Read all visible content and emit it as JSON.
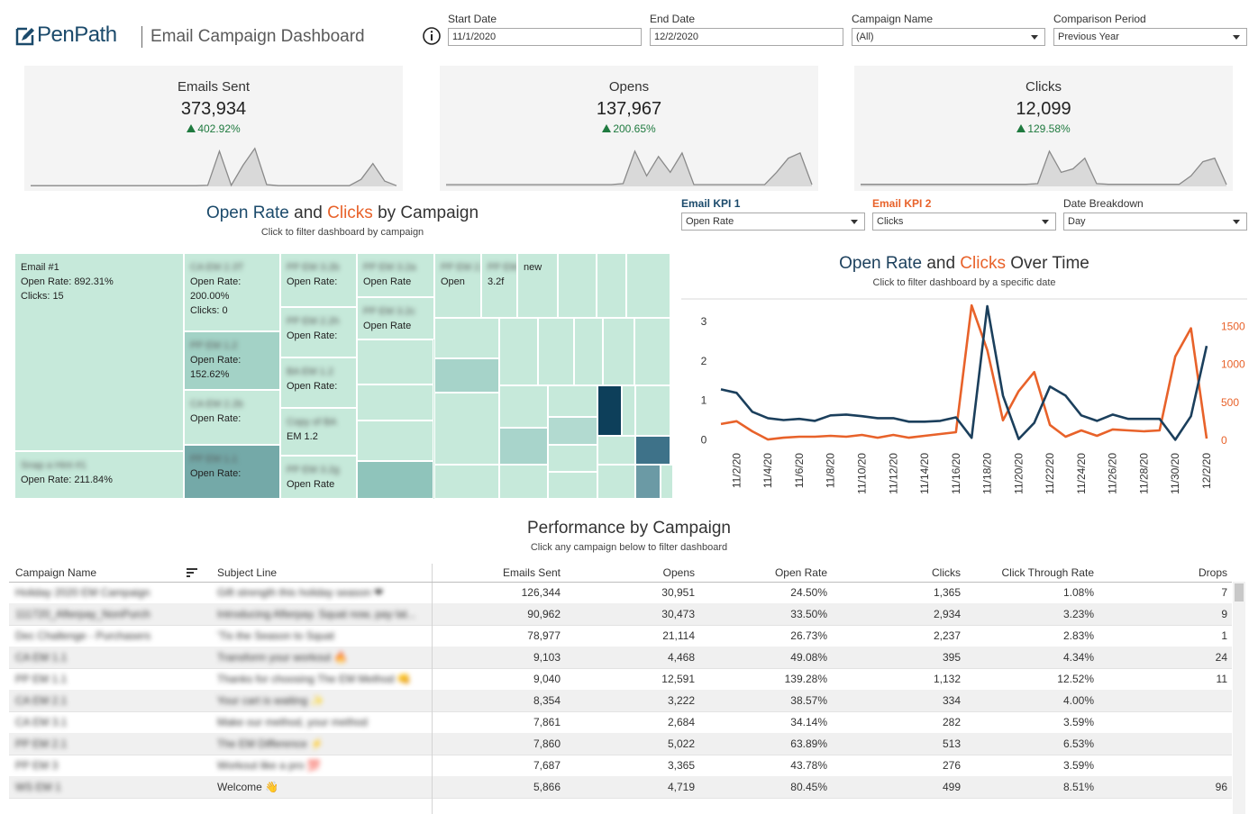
{
  "header": {
    "logo": "PenPath",
    "title": "Email Campaign Dashboard"
  },
  "filters": [
    {
      "label": "Start Date",
      "value": "11/1/2020"
    },
    {
      "label": "End Date",
      "value": "12/2/2020"
    },
    {
      "label": "Campaign Name",
      "value": "(All)"
    },
    {
      "label": "Comparison Period",
      "value": "Previous Year"
    }
  ],
  "kpis": [
    {
      "title": "Emails Sent",
      "value": "373,934",
      "change": "402.92%",
      "sparkline": {
        "type": "area",
        "ylim": [
          0,
          110
        ],
        "values": [
          2,
          2,
          2,
          2,
          2,
          2,
          2,
          2,
          2,
          2,
          2,
          2,
          2,
          2,
          2,
          3,
          100,
          3,
          60,
          108,
          5,
          2,
          2,
          2,
          2,
          2,
          2,
          2,
          20,
          65,
          15,
          2
        ]
      }
    },
    {
      "title": "Opens",
      "value": "137,967",
      "change": "200.65%",
      "sparkline": {
        "type": "area",
        "ylim": [
          0,
          110
        ],
        "values": [
          5,
          5,
          5,
          5,
          5,
          5,
          5,
          5,
          5,
          5,
          5,
          5,
          5,
          5,
          5,
          8,
          100,
          30,
          85,
          40,
          95,
          5,
          5,
          5,
          5,
          5,
          5,
          5,
          40,
          80,
          95,
          5
        ]
      }
    },
    {
      "title": "Clicks",
      "value": "12,099",
      "change": "129.58%",
      "sparkline": {
        "type": "area",
        "ylim": [
          0,
          110
        ],
        "values": [
          6,
          6,
          6,
          6,
          6,
          6,
          6,
          6,
          6,
          6,
          6,
          6,
          6,
          6,
          6,
          8,
          100,
          40,
          50,
          80,
          8,
          6,
          6,
          6,
          6,
          6,
          6,
          6,
          30,
          70,
          80,
          5
        ]
      }
    }
  ],
  "treemap": {
    "title_parts": [
      "Open Rate",
      "and",
      "Clicks",
      "by Campaign"
    ],
    "subtitle": "Click to filter dashboard by campaign",
    "cells": [
      {
        "name": "Email #1",
        "lines": [
          "Open Rate: 892.31%",
          "Clicks: 15"
        ],
        "color": "#c6e9da"
      },
      {
        "name": "Snap a Hint #1",
        "lines": [
          "Open Rate: 211.84%"
        ],
        "color": "#c6e9da"
      },
      {
        "name": "CA EM 2.3T",
        "lines": [
          "Open Rate:",
          "200.00%",
          "Clicks: 0"
        ],
        "color": "#c6e9da"
      },
      {
        "name": "PP EM 1.2",
        "lines": [
          "Open Rate:",
          "152.62%"
        ],
        "color": "#a3d2c6"
      },
      {
        "name": "CA EM 2.2b",
        "lines": [
          "Open Rate:"
        ],
        "color": "#c6e9da"
      },
      {
        "name": "PP EM 1.1",
        "lines": [
          "Open Rate:"
        ],
        "color": "#74a9a8"
      },
      {
        "name": "PP EM 3.2b",
        "lines": [
          "Open Rate:"
        ],
        "color": "#c6e9da"
      },
      {
        "name": "PP EM 2.2h",
        "lines": [
          "Open Rate:"
        ],
        "color": "#c6e9da"
      },
      {
        "name": "BA EM 1.2",
        "lines": [
          "Open Rate:"
        ],
        "color": "#c6e9da"
      },
      {
        "name": "Copy of BA",
        "lines": [
          "EM 1.2"
        ],
        "color": "#c6e9da"
      },
      {
        "name": "PP EM 3.2g",
        "lines": [
          "Open Rate"
        ],
        "color": "#c6e9da"
      },
      {
        "name": "PP EM 3.2a",
        "lines": [
          "Open Rate"
        ],
        "color": "#c6e9da"
      },
      {
        "name": "PP EM 3.2c",
        "lines": [
          "Open Rate"
        ],
        "color": "#c6e9da"
      },
      {
        "name": "PP EM 2.2f",
        "lines": [
          "Open"
        ],
        "color": "#c6e9da"
      },
      {
        "name": "PP EM",
        "lines": [
          "3.2f"
        ],
        "color": "#c6e9da"
      },
      {
        "name": "new",
        "lines": [],
        "color": "#c6e9da"
      }
    ]
  },
  "kpi_selectors": [
    {
      "label": "Email KPI 1",
      "value": "Open Rate",
      "color": "#1b4a6b"
    },
    {
      "label": "Email KPI 2",
      "value": "Clicks",
      "color": "#e8622a"
    },
    {
      "label": "Date Breakdown",
      "value": "Day"
    }
  ],
  "chart_data": {
    "type": "line",
    "title_words": [
      "and",
      "Over Time"
    ],
    "subtitle": "Click to filter dashboard by a specific date",
    "categories": [
      null,
      "11/2/20",
      null,
      "11/4/20",
      null,
      "11/6/20",
      null,
      "11/8/20",
      null,
      "11/10/20",
      null,
      "11/12/20",
      null,
      "11/14/20",
      null,
      "11/16/20",
      null,
      "11/18/20",
      null,
      "11/20/20",
      null,
      "11/22/20",
      null,
      "11/24/20",
      null,
      "11/26/20",
      null,
      "11/28/20",
      null,
      "11/30/20",
      null,
      "12/2/20"
    ],
    "series": [
      {
        "name": "Open Rate",
        "color": "#1b3f5c",
        "values": [
          1.28,
          1.19,
          0.71,
          0.55,
          0.5,
          0.53,
          0.48,
          0.62,
          0.64,
          0.6,
          0.55,
          0.55,
          0.46,
          0.46,
          0.48,
          0.57,
          0.05,
          3.39,
          1.12,
          0.02,
          0.43,
          1.35,
          1.12,
          0.62,
          0.48,
          0.64,
          0.53,
          0.53,
          0.53,
          0.0,
          0.6,
          2.38
        ]
      },
      {
        "name": "Clicks",
        "color": "#e8622a",
        "axis": "y2",
        "values": [
          216,
          252,
          120,
          12,
          36,
          48,
          48,
          60,
          48,
          72,
          36,
          72,
          36,
          60,
          84,
          108,
          1776,
          1188,
          264,
          648,
          900,
          204,
          48,
          132,
          60,
          144,
          132,
          120,
          132,
          1104,
          1476,
          24
        ]
      }
    ],
    "ylim": [
      -0.15,
      3.55
    ],
    "yticks": [
      0,
      1,
      2,
      3
    ],
    "y2lim": [
      -70,
      1850
    ],
    "y2ticks": [
      0,
      500,
      1000,
      1500
    ]
  },
  "table": {
    "title": "Performance by Campaign",
    "subtitle": "Click any campaign below to filter dashboard",
    "columns": [
      "Campaign Name",
      "Subject Line",
      "Emails Sent",
      "Opens",
      "Open Rate",
      "Clicks",
      "Click Through Rate",
      "Drops"
    ],
    "rows": [
      [
        "Holiday 2020 EM Campaign",
        "Gift strength this holiday season ❤",
        "126,344",
        "30,951",
        "24.50%",
        "1,365",
        "1.08%",
        "7"
      ],
      [
        "111720_Afterpay_NonPurch",
        "Introducing Afterpay. Squat now, pay lat...",
        "90,962",
        "30,473",
        "33.50%",
        "2,934",
        "3.23%",
        "9"
      ],
      [
        "Dec Challenge - Purchasers",
        "'Tis the Season to Squat",
        "78,977",
        "21,114",
        "26.73%",
        "2,237",
        "2.83%",
        "1"
      ],
      [
        "CA EM 1.1",
        "Transform your workout 🔥",
        "9,103",
        "4,468",
        "49.08%",
        "395",
        "4.34%",
        "24"
      ],
      [
        "PP EM 1.1",
        "Thanks for choosing The EM Method 👊",
        "9,040",
        "12,591",
        "139.28%",
        "1,132",
        "12.52%",
        "11"
      ],
      [
        "CA EM 2.1",
        "Your cart is waiting ✨",
        "8,354",
        "3,222",
        "38.57%",
        "334",
        "4.00%",
        null
      ],
      [
        "CA EM 3.1",
        "Make our method, your method",
        "7,861",
        "2,684",
        "34.14%",
        "282",
        "3.59%",
        null
      ],
      [
        "PP EM 2.1",
        "The EM Difference ⚡",
        "7,860",
        "5,022",
        "63.89%",
        "513",
        "6.53%",
        null
      ],
      [
        "PP EM 3",
        "Workout like a pro 💯",
        "7,687",
        "3,365",
        "43.78%",
        "276",
        "3.59%",
        null
      ],
      [
        "WS EM 1",
        "Welcome 👋",
        "5,866",
        "4,719",
        "80.45%",
        "499",
        "8.51%",
        "96"
      ]
    ]
  }
}
